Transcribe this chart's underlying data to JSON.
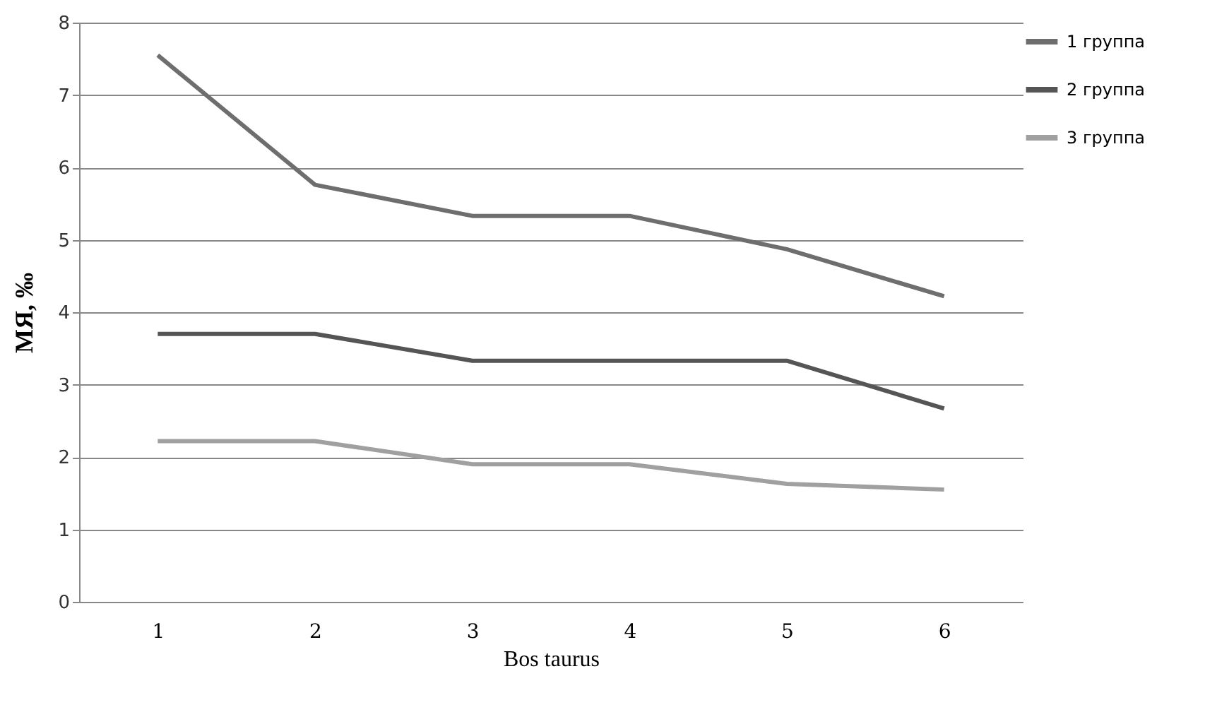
{
  "chart_data": {
    "type": "line",
    "xlabel": "Bos taurus",
    "ylabel": "МЯ, ‰",
    "categories": [
      "1",
      "2",
      "3",
      "4",
      "5",
      "6"
    ],
    "series": [
      {
        "name": "1 группа",
        "color": "#6e6e6e",
        "values": [
          7.55,
          5.76,
          5.33,
          5.33,
          4.87,
          4.22
        ]
      },
      {
        "name": "2 группа",
        "color": "#555555",
        "values": [
          3.7,
          3.7,
          3.33,
          3.33,
          3.33,
          2.67
        ]
      },
      {
        "name": "3 группа",
        "color": "#a0a0a0",
        "values": [
          2.22,
          2.22,
          1.9,
          1.9,
          1.63,
          1.55
        ]
      }
    ],
    "ylim": [
      0,
      8
    ],
    "yticks": [
      0,
      1,
      2,
      3,
      4,
      5,
      6,
      7,
      8
    ],
    "grid": "y",
    "legend": "right",
    "marker": "none",
    "line_style": "solid"
  }
}
